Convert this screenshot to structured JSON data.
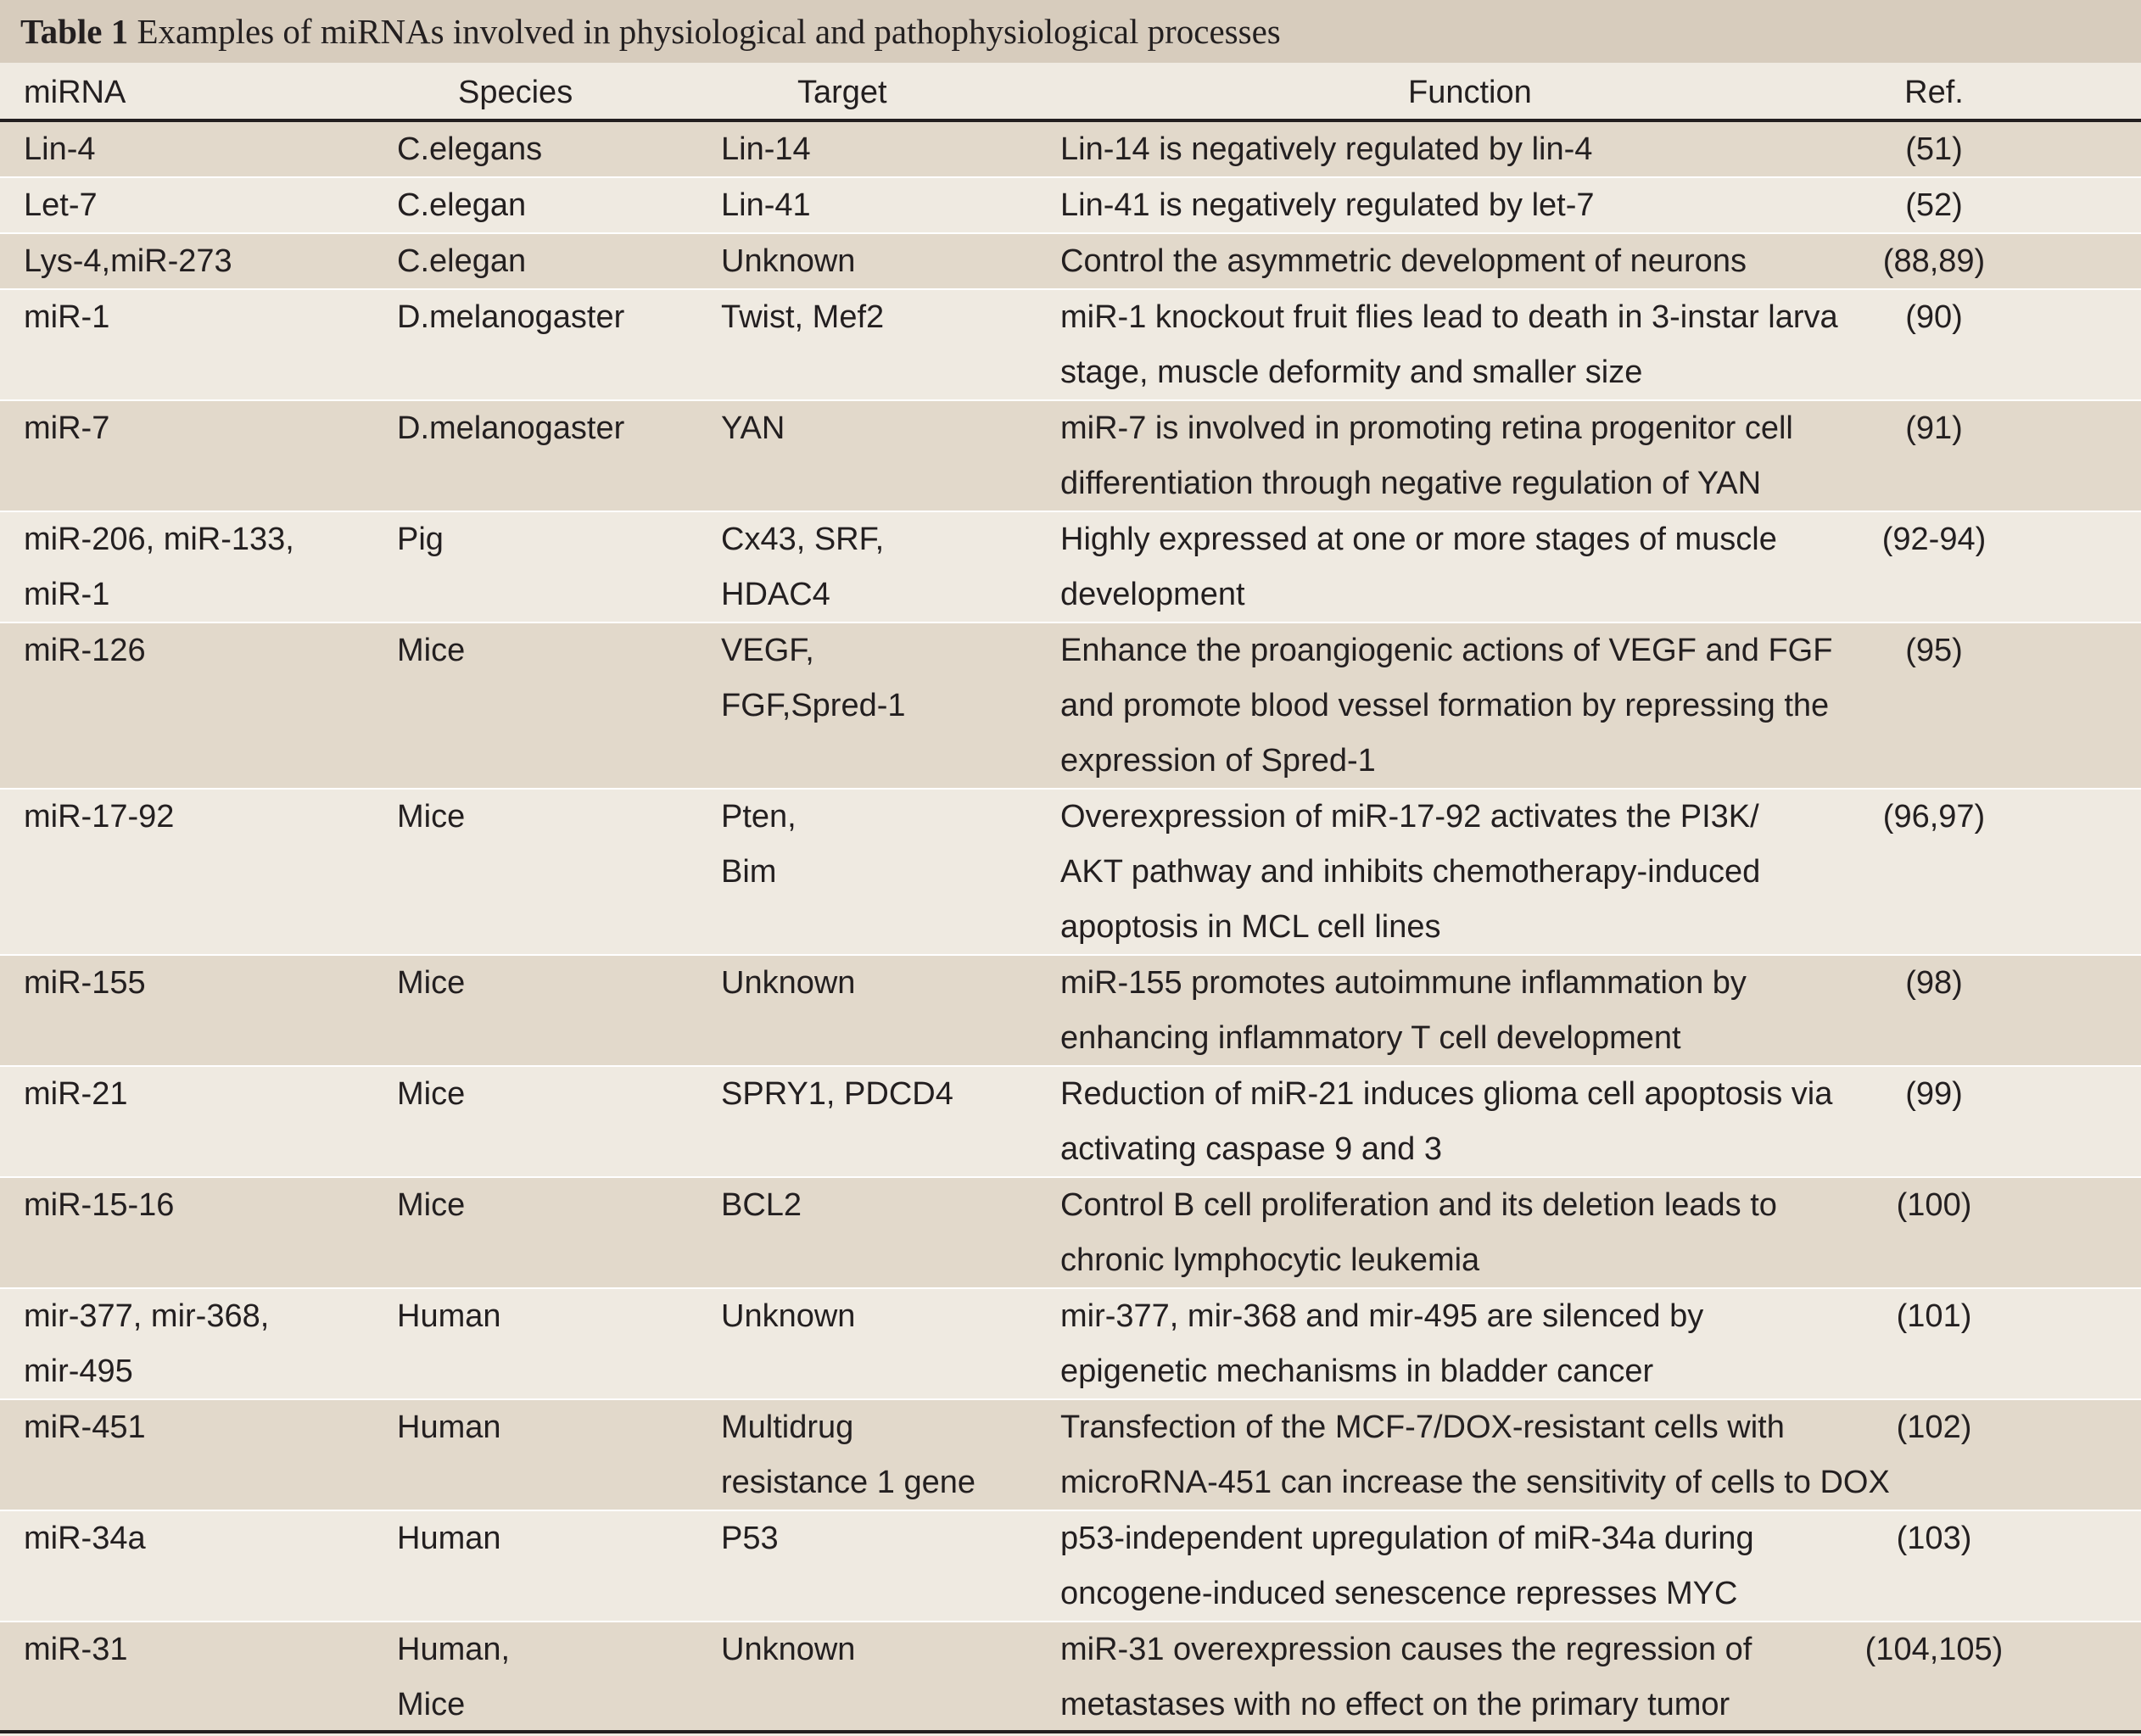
{
  "caption": {
    "label": "Table 1",
    "text": "Examples of miRNAs involved in physiological and pathophysiological processes"
  },
  "headers": {
    "mirna": "miRNA",
    "species": "Species",
    "target": "Target",
    "function": "Function",
    "ref": "Ref."
  },
  "rows": [
    {
      "mirna": [
        "Lin-4"
      ],
      "species": [
        "C.elegans"
      ],
      "target": [
        "Lin-14"
      ],
      "function": [
        "Lin-14 is negatively regulated by lin-4"
      ],
      "ref": "(51)"
    },
    {
      "mirna": [
        "Let-7"
      ],
      "species": [
        "C.elegan"
      ],
      "target": [
        "Lin-41"
      ],
      "function": [
        "Lin-41 is negatively regulated by let-7"
      ],
      "ref": "(52)"
    },
    {
      "mirna": [
        "Lys-4,miR-273"
      ],
      "species": [
        "C.elegan"
      ],
      "target": [
        "Unknown"
      ],
      "function": [
        "Control the asymmetric development of neurons"
      ],
      "ref": "(88,89)"
    },
    {
      "mirna": [
        "miR-1"
      ],
      "species": [
        "D.melanogaster"
      ],
      "target": [
        "Twist, Mef2"
      ],
      "function": [
        "miR-1 knockout fruit flies lead to death in 3-instar larva",
        "stage, muscle deformity and smaller size"
      ],
      "ref": "(90)"
    },
    {
      "mirna": [
        "miR-7"
      ],
      "species": [
        "D.melanogaster"
      ],
      "target": [
        "YAN"
      ],
      "function": [
        "miR-7 is involved in promoting retina progenitor cell",
        "differentiation through negative regulation of YAN"
      ],
      "ref": "(91)"
    },
    {
      "mirna": [
        "miR-206, miR-133,",
        "miR-1"
      ],
      "species": [
        "Pig"
      ],
      "target": [
        "Cx43, SRF,",
        "HDAC4"
      ],
      "function": [
        "Highly expressed at one or more stages of muscle",
        "development"
      ],
      "ref": "(92-94)"
    },
    {
      "mirna": [
        "miR-126"
      ],
      "species": [
        "Mice"
      ],
      "target": [
        "VEGF,",
        "FGF,Spred-1"
      ],
      "function": [
        "Enhance the proangiogenic actions of VEGF and FGF",
        "and promote blood vessel formation by repressing the",
        "expression of Spred-1"
      ],
      "ref": "(95)"
    },
    {
      "mirna": [
        "miR-17-92"
      ],
      "species": [
        "Mice"
      ],
      "target": [
        "Pten,",
        "Bim"
      ],
      "function": [
        "Overexpression of miR-17-92 activates the PI3K/",
        "AKT pathway and inhibits chemotherapy-induced",
        "apoptosis in MCL cell lines"
      ],
      "ref": "(96,97)"
    },
    {
      "mirna": [
        "miR-155"
      ],
      "species": [
        "Mice"
      ],
      "target": [
        "Unknown"
      ],
      "function": [
        "miR-155 promotes autoimmune inflammation by",
        "enhancing inflammatory T cell development"
      ],
      "ref": "(98)"
    },
    {
      "mirna": [
        "miR-21"
      ],
      "species": [
        "Mice"
      ],
      "target": [
        "SPRY1, PDCD4"
      ],
      "function": [
        "Reduction of miR-21 induces glioma cell apoptosis via",
        "activating caspase 9 and 3"
      ],
      "ref": "(99)"
    },
    {
      "mirna": [
        "miR-15-16"
      ],
      "species": [
        "Mice"
      ],
      "target": [
        "BCL2"
      ],
      "function": [
        "Control B cell proliferation and its deletion leads to",
        "chronic lymphocytic leukemia"
      ],
      "ref": "(100)"
    },
    {
      "mirna": [
        "mir-377, mir-368,",
        "mir-495"
      ],
      "species": [
        "Human"
      ],
      "target": [
        "Unknown"
      ],
      "function": [
        "mir-377, mir-368 and mir-495 are silenced by",
        "epigenetic mechanisms in bladder cancer"
      ],
      "ref": "(101)"
    },
    {
      "mirna": [
        "miR-451"
      ],
      "species": [
        "Human"
      ],
      "target": [
        "Multidrug",
        "resistance 1 gene"
      ],
      "function": [
        "Transfection of the MCF-7/DOX-resistant cells with",
        "microRNA-451 can increase the sensitivity of cells to DOX"
      ],
      "ref": "(102)"
    },
    {
      "mirna": [
        "miR-34a"
      ],
      "species": [
        "Human"
      ],
      "target": [
        "P53"
      ],
      "function": [
        "p53-independent upregulation of miR-34a during",
        "oncogene-induced senescence represses MYC"
      ],
      "ref": "(103)"
    },
    {
      "mirna": [
        "miR-31"
      ],
      "species": [
        "Human,",
        "Mice"
      ],
      "target": [
        "Unknown"
      ],
      "function": [
        "miR-31 overexpression causes the regression of",
        "metastases with no effect on the primary tumor"
      ],
      "ref": "(104,105)"
    }
  ]
}
